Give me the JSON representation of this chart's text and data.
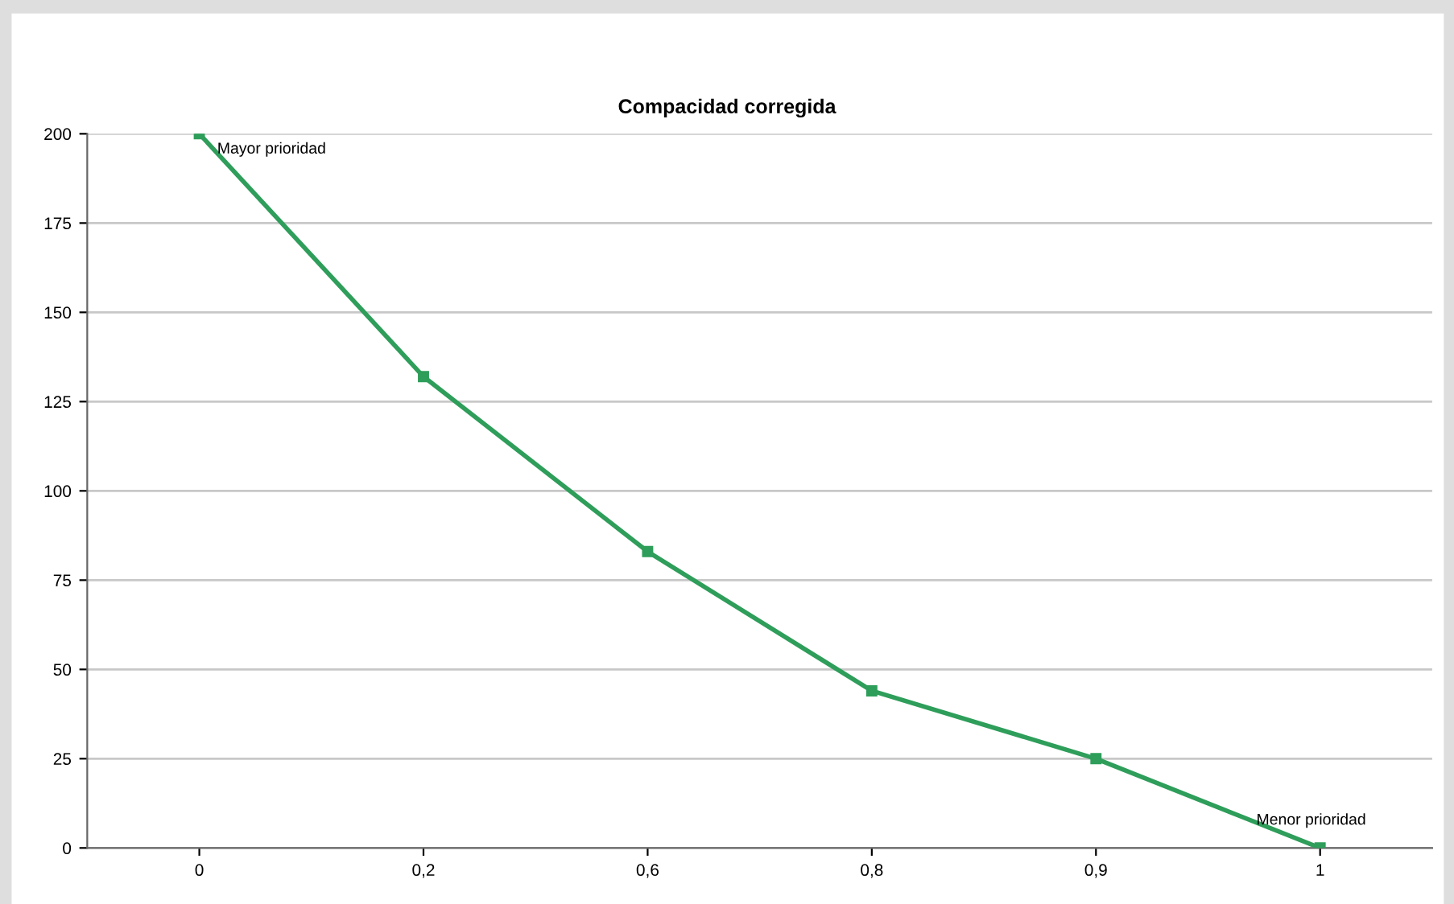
{
  "chart_data": {
    "type": "line",
    "title": "Compacidad corregida",
    "categories": [
      "0",
      "0,2",
      "0,6",
      "0,8",
      "0,9",
      "1"
    ],
    "series": [
      {
        "color": "#2e9e5a",
        "values": [
          200,
          132,
          83,
          44,
          25,
          0
        ]
      }
    ],
    "ylim": [
      0,
      200
    ],
    "yticks": [
      0,
      25,
      50,
      75,
      100,
      125,
      150,
      175,
      200
    ],
    "grid": "y",
    "marker": "square",
    "line_style": "solid",
    "annotations": [
      {
        "text": "Mayor prioridad",
        "x": "0",
        "y": 200
      },
      {
        "text": "Menor prioridad",
        "x": "1",
        "y": 0
      }
    ]
  }
}
